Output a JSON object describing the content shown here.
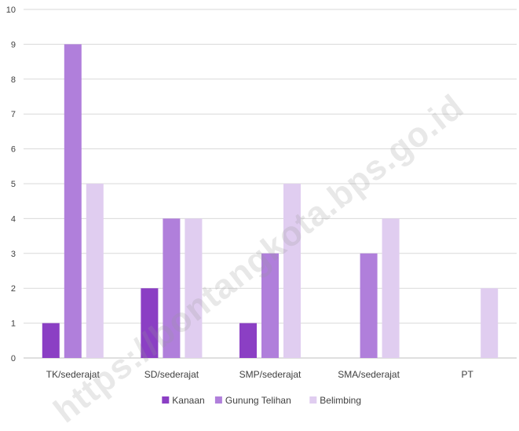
{
  "chart_data": {
    "type": "bar",
    "categories": [
      "TK/sederajat",
      "SD/sederajat",
      "SMP/sederajat",
      "SMA/sederajat",
      "PT"
    ],
    "series": [
      {
        "name": "Kanaan",
        "values": [
          1,
          2,
          1,
          0,
          0
        ],
        "color": "#8b3fc4"
      },
      {
        "name": "Gunung Telihan",
        "values": [
          9,
          4,
          3,
          3,
          0
        ],
        "color": "#b07fdb"
      },
      {
        "name": "Belimbing",
        "values": [
          5,
          4,
          5,
          4,
          2
        ],
        "color": "#e0cdf0"
      }
    ],
    "ylim": [
      0,
      10
    ],
    "yticks": [
      0,
      1,
      2,
      3,
      4,
      5,
      6,
      7,
      8,
      9,
      10
    ],
    "grid": true,
    "legend": "bottom",
    "title": "",
    "xlabel": "",
    "ylabel": ""
  },
  "watermark": "https://bontangkota.bps.go.id"
}
